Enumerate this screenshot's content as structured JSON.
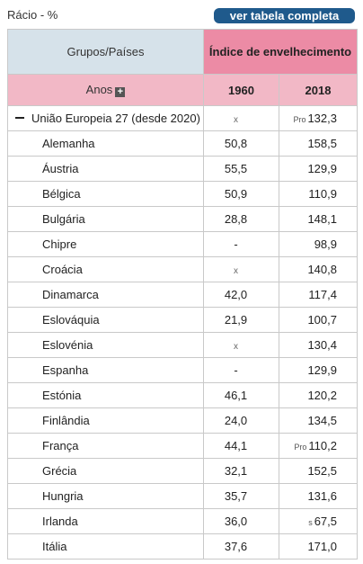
{
  "header": {
    "unit_label": "Rácio - %",
    "view_table_button": "ver tabela completa"
  },
  "table": {
    "col_group_label": "Grupos/Países",
    "indicator_label": "Índice de envelhecimento",
    "years_label": "Anos",
    "year_1": "1960",
    "year_2": "2018",
    "aggregate": {
      "name": "União Europeia 27 (desde 2020)",
      "v1960": "x",
      "v2018_flag": "Pro",
      "v2018": "132,3"
    },
    "rows": [
      {
        "name": "Alemanha",
        "v1960": "50,8",
        "v2018_flag": "",
        "v2018": "158,5"
      },
      {
        "name": "Áustria",
        "v1960": "55,5",
        "v2018_flag": "",
        "v2018": "129,9"
      },
      {
        "name": "Bélgica",
        "v1960": "50,9",
        "v2018_flag": "",
        "v2018": "110,9"
      },
      {
        "name": "Bulgária",
        "v1960": "28,8",
        "v2018_flag": "",
        "v2018": "148,1"
      },
      {
        "name": "Chipre",
        "v1960": "-",
        "v2018_flag": "",
        "v2018": "98,9"
      },
      {
        "name": "Croácia",
        "v1960": "x",
        "v2018_flag": "",
        "v2018": "140,8"
      },
      {
        "name": "Dinamarca",
        "v1960": "42,0",
        "v2018_flag": "",
        "v2018": "117,4"
      },
      {
        "name": "Eslováquia",
        "v1960": "21,9",
        "v2018_flag": "",
        "v2018": "100,7"
      },
      {
        "name": "Eslovénia",
        "v1960": "x",
        "v2018_flag": "",
        "v2018": "130,4"
      },
      {
        "name": "Espanha",
        "v1960": "-",
        "v2018_flag": "",
        "v2018": "129,9"
      },
      {
        "name": "Estónia",
        "v1960": "46,1",
        "v2018_flag": "",
        "v2018": "120,2"
      },
      {
        "name": "Finlândia",
        "v1960": "24,0",
        "v2018_flag": "",
        "v2018": "134,5"
      },
      {
        "name": "França",
        "v1960": "44,1",
        "v2018_flag": "Pro",
        "v2018": "110,2"
      },
      {
        "name": "Grécia",
        "v1960": "32,1",
        "v2018_flag": "",
        "v2018": "152,5"
      },
      {
        "name": "Hungria",
        "v1960": "35,7",
        "v2018_flag": "",
        "v2018": "131,6"
      },
      {
        "name": "Irlanda",
        "v1960": "36,0",
        "v2018_flag": "s",
        "v2018": "67,5"
      },
      {
        "name": "Itália",
        "v1960": "37,6",
        "v2018_flag": "",
        "v2018": "171,0"
      }
    ]
  }
}
